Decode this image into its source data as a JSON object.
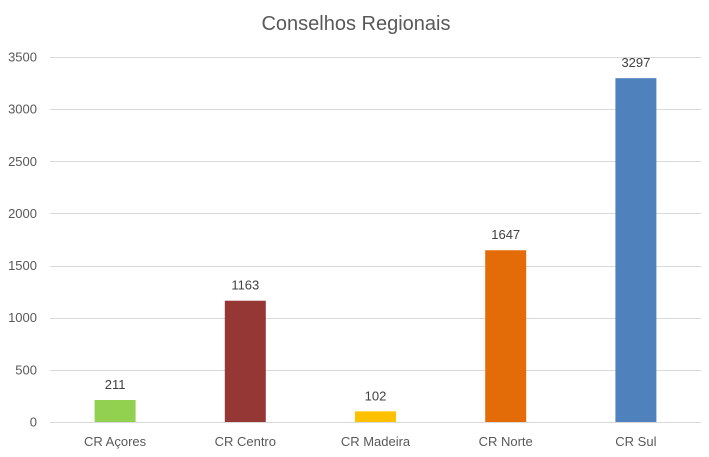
{
  "chart_data": {
    "type": "bar",
    "title": "Conselhos Regionais",
    "xlabel": "",
    "ylabel": "",
    "categories": [
      "CR Açores",
      "CR Centro",
      "CR Madeira",
      "CR Norte",
      "CR Sul"
    ],
    "values": [
      211,
      1163,
      102,
      1647,
      3297
    ],
    "colors": [
      "#92d050",
      "#953735",
      "#ffc000",
      "#e36c09",
      "#4f81bd"
    ],
    "ylim": [
      0,
      3500
    ],
    "yticks": [
      0,
      500,
      1000,
      1500,
      2000,
      2500,
      3000,
      3500
    ],
    "grid": true,
    "legend": "none",
    "data_labels": true
  }
}
